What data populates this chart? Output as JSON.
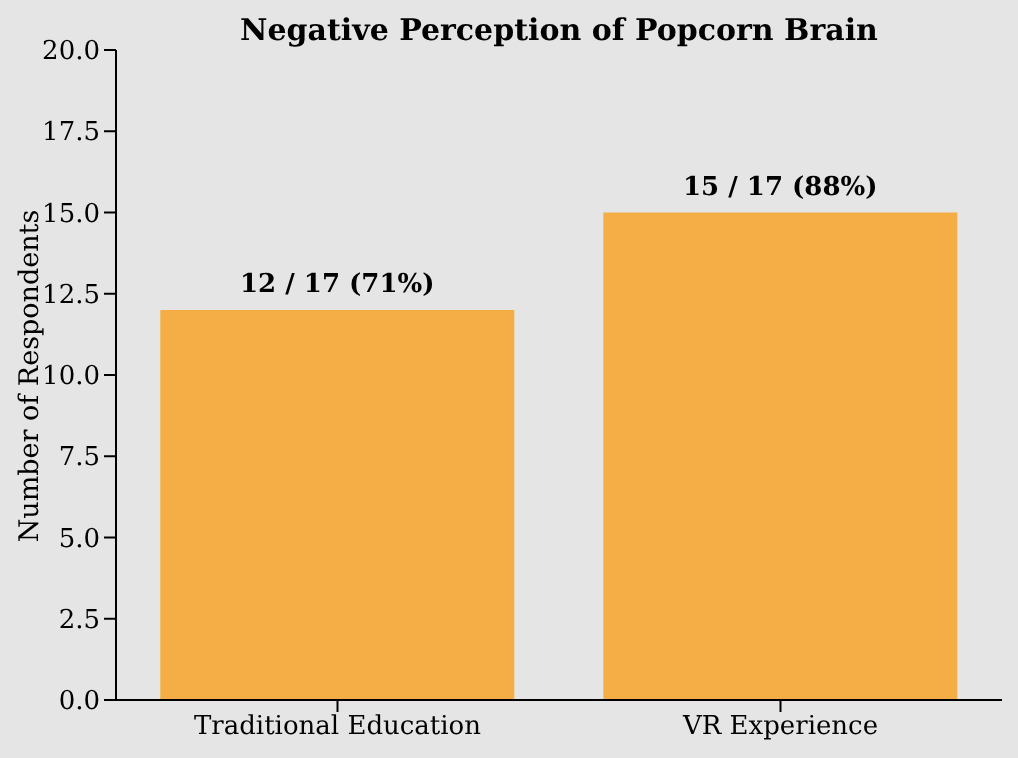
{
  "chart_data": {
    "type": "bar",
    "title": "Negative Perception of Popcorn Brain",
    "ylabel": "Number of Respondents",
    "categories": [
      "Traditional Education",
      "VR Experience"
    ],
    "values": [
      12,
      15
    ],
    "color": "#f5ae45",
    "value_labels": [
      "12 / 17 (71%)",
      "15 / 17 (88%)"
    ],
    "ylim": [
      0,
      20
    ],
    "yticks": [
      {
        "value": 0,
        "label": "0.0"
      },
      {
        "value": 2.5,
        "label": "2.5"
      },
      {
        "value": 5,
        "label": "5.0"
      },
      {
        "value": 7.5,
        "label": "7.5"
      },
      {
        "value": 10,
        "label": "10.0"
      },
      {
        "value": 12.5,
        "label": "12.5"
      },
      {
        "value": 15,
        "label": "15.0"
      },
      {
        "value": 17.5,
        "label": "17.5"
      },
      {
        "value": 20,
        "label": "20.0"
      }
    ],
    "grid": false,
    "legend": false
  }
}
